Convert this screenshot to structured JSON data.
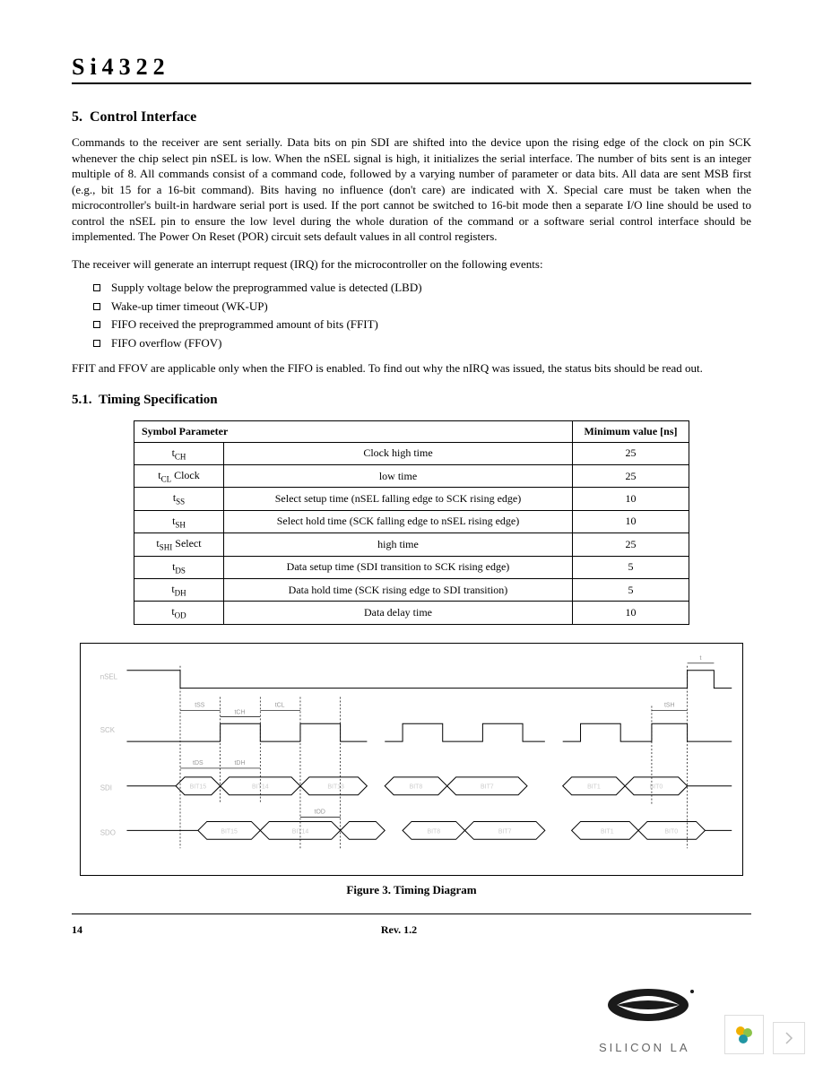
{
  "header": {
    "part_number": "Si4322"
  },
  "section": {
    "number": "5.",
    "title": "Control Interface",
    "body": "Commands to the receiver are sent serially. Data bits on pin SDI are shifted into the device upon the rising edge of the clock on pin SCK whenever the chip select pin nSEL is low. When the nSEL signal is high, it initializes the serial interface. The number of bits sent is an integer multiple of 8. All commands consist of a command code, followed by a varying number of parameter or data bits. All data are sent MSB first (e.g., bit 15 for a 16-bit command). Bits having no influence (don't care) are indicated with X. Special care must be taken when the microcontroller's built-in hardware serial port is used. If the port cannot be switched to 16-bit mode then a separate I/O line should be used to control the nSEL pin to ensure the low level during the whole duration of the command or a software serial control interface should be implemented. The Power On Reset (POR) circuit sets default values in all control registers.",
    "irq_intro": "The receiver will generate an interrupt request (IRQ) for the microcontroller on the following events:",
    "irq_items": [
      "Supply voltage below the preprogrammed value is detected (LBD)",
      "Wake-up timer timeout (WK-UP)",
      "FIFO received the preprogrammed amount of bits (FFIT)",
      "FIFO overflow (FFOV)"
    ],
    "irq_note": "FFIT and FFOV are applicable only when the FIFO is enabled. To find out why the nIRQ was issued, the status bits should be read out."
  },
  "subsection": {
    "number": "5.1.",
    "title": "Timing Specification"
  },
  "timing_table": {
    "headers": {
      "symbol_param": "Symbol Parameter",
      "min": "Minimum value [ns]"
    },
    "rows": [
      {
        "sym": "t",
        "sub": "CH",
        "param": "Clock high time",
        "val": "25"
      },
      {
        "sym": "t",
        "sub": "CL",
        "suffix": " Clock",
        "param": "low   time",
        "val": "25"
      },
      {
        "sym": "t",
        "sub": "SS",
        "param": "Select setup time (nSEL falling edge to SCK rising edge)",
        "val": "10"
      },
      {
        "sym": "t",
        "sub": "SH",
        "param": "Select hold time (SCK falling edge to nSEL rising edge)",
        "val": "10"
      },
      {
        "sym": "t",
        "sub": "SHI",
        "suffix": " Select",
        "param": "high   time",
        "val": "25"
      },
      {
        "sym": "t",
        "sub": "DS",
        "param": "Data setup time (SDI transition to SCK rising edge)",
        "val": "5"
      },
      {
        "sym": "t",
        "sub": "DH",
        "param": "Data hold time (SCK rising edge to SDI transition)",
        "val": "5"
      },
      {
        "sym": "t",
        "sub": "OD",
        "param": "Data delay time",
        "val": "10"
      }
    ]
  },
  "diagram": {
    "caption": "Figure 3. Timing Diagram",
    "signals": [
      "nSEL",
      "SCK",
      "SDI",
      "SDO"
    ],
    "bits": [
      "BIT15",
      "BIT14",
      "BIT13",
      "BIT8",
      "BIT7",
      "BIT1",
      "BIT0"
    ],
    "timing_labels": [
      "tSS",
      "tCL",
      "tCH",
      "tDS",
      "tDH",
      "tOD",
      "tSH",
      "tSHI"
    ],
    "colors": {
      "line": "#000000",
      "faint": "#cccccc",
      "background": "#ffffff"
    }
  },
  "footer": {
    "page": "14",
    "rev": "Rev. 1.2",
    "brand": "SILICON LA"
  }
}
